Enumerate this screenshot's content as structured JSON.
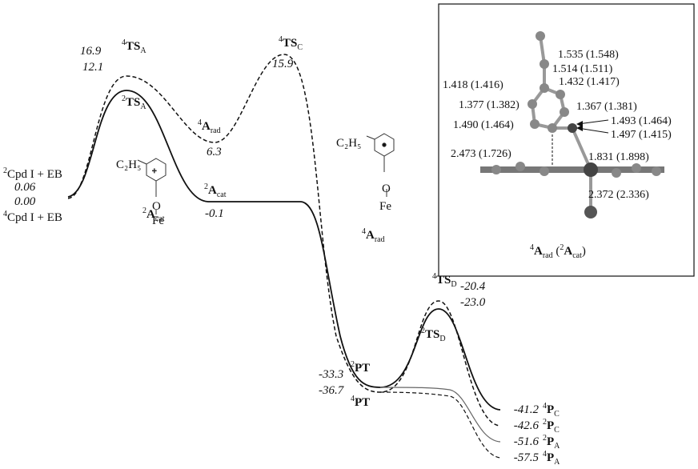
{
  "species": [
    {
      "spin": "4",
      "name": "TS",
      "sub": "A"
    },
    {
      "spin": "2",
      "name": "TS",
      "sub": "A"
    },
    {
      "spin": "4",
      "name": "TS",
      "sub": "C"
    },
    {
      "spin": "4",
      "name": "A",
      "sub": "rad"
    },
    {
      "spin": "2",
      "name": "A",
      "sub": "cat"
    },
    {
      "spin": "4",
      "name": "TS",
      "sub": "D"
    },
    {
      "spin": "2",
      "name": "TS",
      "sub": "D"
    },
    {
      "spin": "2",
      "name": "PT"
    },
    {
      "spin": "4",
      "name": "PT"
    },
    {
      "spin": "4",
      "name": "P",
      "sub": "C"
    },
    {
      "spin": "2",
      "name": "P",
      "sub": "C"
    },
    {
      "spin": "2",
      "name": "P",
      "sub": "A"
    },
    {
      "spin": "4",
      "name": "P",
      "sub": "A"
    }
  ],
  "reactants": [
    {
      "spin": "2",
      "name": "Cpd I + EB"
    },
    {
      "spin": "4",
      "name": "Cpd I + EB"
    }
  ],
  "energies": [
    "16.9",
    "12.1",
    "15.9",
    "6.3",
    "-0.1",
    "-20.4",
    "-23.0",
    "-33.3",
    "-36.7",
    "-41.2",
    "-42.6",
    "-51.6",
    "-57.5",
    "0.06",
    "0.00"
  ],
  "structures": [
    {
      "group": "C₂H₅",
      "oxygen": "O",
      "iron": "Fe",
      "label": {
        "spin": "2",
        "name": "A",
        "sub": "cat"
      }
    },
    {
      "group": "C₂H₅",
      "oxygen": "O",
      "iron": "Fe",
      "label": {
        "spin": "4",
        "name": "A",
        "sub": "rad"
      }
    }
  ],
  "inset": {
    "distances": [
      "1.535 (1.548)",
      "1.514 (1.511)",
      "1.432 (1.417)",
      "1.418 (1.416)",
      "1.377 (1.382)",
      "1.367 (1.381)",
      "1.493 (1.464)",
      "1.490 (1.464)",
      "1.497 (1.415)",
      "2.473 (1.726)",
      "1.831 (1.898)",
      "2.372 (2.336)"
    ],
    "caption": {
      "spin": "4",
      "name": "A",
      "sub": "rad",
      "open": " (",
      "alt_spin": "2",
      "alt_name": "A",
      "alt_sub": "cat",
      "close": ")"
    }
  }
}
